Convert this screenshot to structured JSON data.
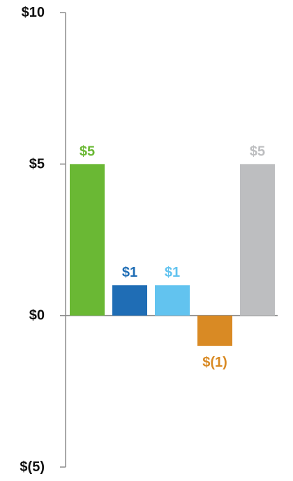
{
  "chart_data": {
    "type": "bar",
    "title": "",
    "xlabel": "",
    "ylabel": "",
    "ylim": [
      -5,
      10
    ],
    "y_ticks": [
      10,
      5,
      0,
      -5
    ],
    "y_tick_labels": [
      "$10",
      "$5",
      "$0",
      "$(5)"
    ],
    "grid": false,
    "legend": "none",
    "categories": [
      "",
      "",
      "",
      "",
      ""
    ],
    "values": [
      5,
      1,
      1,
      -1,
      5
    ],
    "data_labels": [
      "$5",
      "$1",
      "$1",
      "$(1)",
      "$5"
    ],
    "colors": [
      "#6ab834",
      "#1f6db5",
      "#62c3ef",
      "#d98a24",
      "#bdbec0"
    ]
  }
}
